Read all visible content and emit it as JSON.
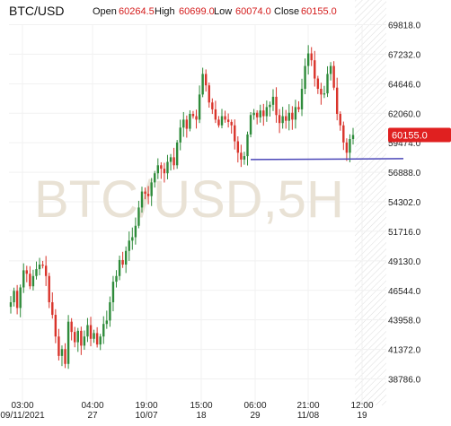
{
  "chart_data": {
    "type": "candlestick",
    "title": "BTC/USD",
    "watermark": "BTC/USD,5H",
    "ohlc_header": [
      {
        "label": "Open",
        "value": "60264.5"
      },
      {
        "label": "High",
        "value": "60699.0"
      },
      {
        "label": "Low",
        "value": "60074.0"
      },
      {
        "label": "Close",
        "value": "60155.0"
      }
    ],
    "last_price_label": "60155.0",
    "last_price": 60155.0,
    "ylim": [
      37500,
      70500
    ],
    "y_ticks": [
      "69818.0",
      "67232.0",
      "64646.0",
      "62060.0",
      "59474.0",
      "56888.0",
      "54302.0",
      "51716.0",
      "49130.0",
      "46544.0",
      "43958.0",
      "41372.0",
      "38786.0"
    ],
    "x_ticks": [
      {
        "time": "03:00",
        "date": "09/11/2021"
      },
      {
        "time": "04:00",
        "date": "27"
      },
      {
        "time": "19:00",
        "date": "10/07"
      },
      {
        "time": "15:00",
        "date": "18"
      },
      {
        "time": "06:00",
        "date": "29"
      },
      {
        "time": "21:00",
        "date": "11/08"
      },
      {
        "time": "12:00",
        "date": "19"
      }
    ],
    "support_line": {
      "value": 58000
    },
    "up_color": "#2e8b3a",
    "down_color": "#d9342b",
    "line_color": "#4b47b8",
    "label_color": "#e02020",
    "close_path": [
      45500,
      46500,
      45000,
      46800,
      48300,
      48000,
      46900,
      47800,
      48400,
      48800,
      48700,
      47800,
      45500,
      44400,
      42500,
      40800,
      41400,
      40100,
      43800,
      42900,
      42000,
      43000,
      41700,
      42500,
      43500,
      42300,
      42800,
      41800,
      42500,
      43600,
      43900,
      45500,
      47300,
      47800,
      49200,
      48800,
      50000,
      50900,
      51200,
      52200,
      53800,
      55200,
      55000,
      54800,
      56000,
      56800,
      57500,
      57200,
      56800,
      57800,
      58200,
      57500,
      59500,
      60800,
      61500,
      60700,
      62000,
      61800,
      61500,
      63700,
      65500,
      64500,
      63000,
      62400,
      61500,
      61000,
      61800,
      61500,
      61300,
      61000,
      59600,
      58600,
      58000,
      58300,
      60200,
      61900,
      62100,
      61700,
      62300,
      61800,
      62600,
      62800,
      63500,
      61900,
      61200,
      61800,
      61400,
      62100,
      61500,
      62600,
      62400,
      64200,
      66200,
      67300,
      66700,
      65100,
      64200,
      63700,
      63800,
      65500,
      66200,
      64300,
      62000,
      61000,
      59500,
      58600,
      59800,
      60155
    ]
  }
}
